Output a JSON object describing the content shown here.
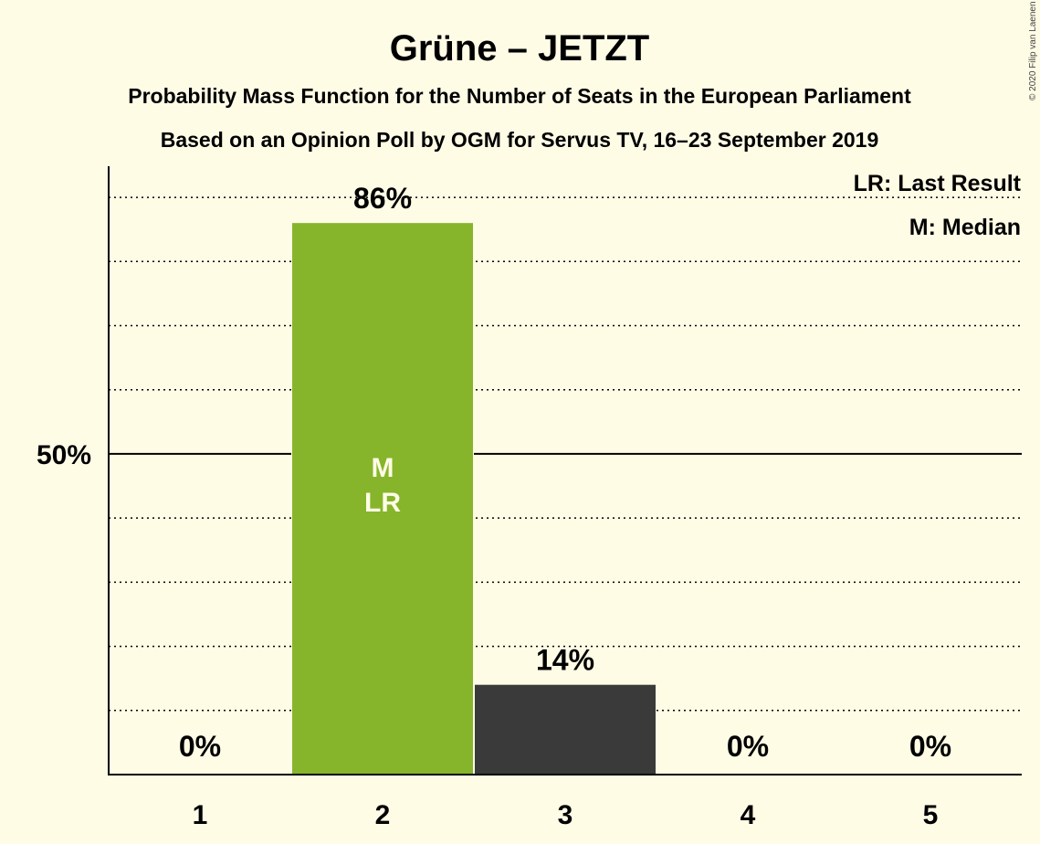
{
  "chart_data": {
    "type": "bar",
    "title": "Grüne – JETZT",
    "subtitle": "Probability Mass Function for the Number of Seats in the European Parliament",
    "subtitle2": "Based on an Opinion Poll by OGM for Servus TV, 16–23 September 2019",
    "categories": [
      "1",
      "2",
      "3",
      "4",
      "5"
    ],
    "values": [
      0,
      86,
      14,
      0,
      0
    ],
    "value_labels": [
      "0%",
      "86%",
      "14%",
      "0%",
      "0%"
    ],
    "ylim": [
      0,
      94
    ],
    "ytick_label": "50%",
    "ytick_value": 50,
    "bar_colors": [
      "#86B52B",
      "#86B52B",
      "#3A3A3A",
      "#3A3A3A",
      "#3A3A3A"
    ],
    "bar_markers": [
      "",
      "M\nLR",
      "",
      "",
      ""
    ],
    "legend": [
      "LR: Last Result",
      "M: Median"
    ],
    "legend_position": "top-right",
    "grid": true,
    "copyright": "© 2020 Filip van Laenen"
  }
}
